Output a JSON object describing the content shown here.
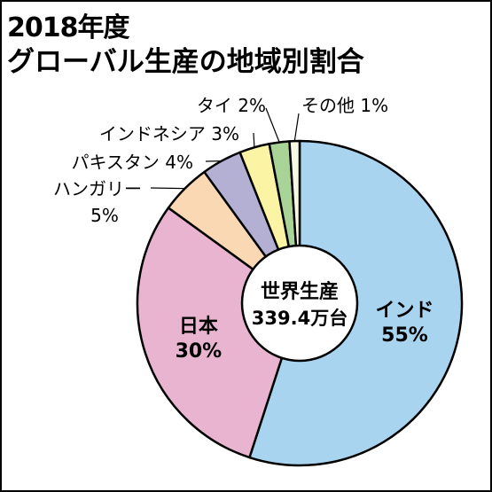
{
  "header": {
    "title_line1": "2018年度",
    "title_line2": "グローバル生産の地域別割合"
  },
  "chart_data": {
    "type": "pie",
    "style": "donut",
    "title": "2018年度 グローバル生産の地域別割合",
    "center_label": [
      "世界生産",
      "339.4万台"
    ],
    "start": "top, clockwise",
    "categories": [
      "インド",
      "日本",
      "ハンガリー",
      "パキスタン",
      "インドネシア",
      "タイ",
      "その他"
    ],
    "values": [
      55,
      30,
      5,
      4,
      3,
      2,
      1
    ],
    "unit": "%",
    "colors": [
      "#a8d4f0",
      "#e8b4d0",
      "#fad8b4",
      "#b4b0d4",
      "#faf4a4",
      "#a8d498",
      "#f4f8e4"
    ],
    "labels": [
      {
        "lines": [
          "インド",
          "55%"
        ]
      },
      {
        "lines": [
          "日本",
          "30%"
        ]
      },
      {
        "lines": [
          "ハンガリー",
          "5%"
        ]
      },
      {
        "lines": [
          "パキスタン 4%"
        ]
      },
      {
        "lines": [
          "インドネシア 3%"
        ]
      },
      {
        "lines": [
          "タイ 2%"
        ]
      },
      {
        "lines": [
          "その他 1%"
        ]
      }
    ]
  }
}
